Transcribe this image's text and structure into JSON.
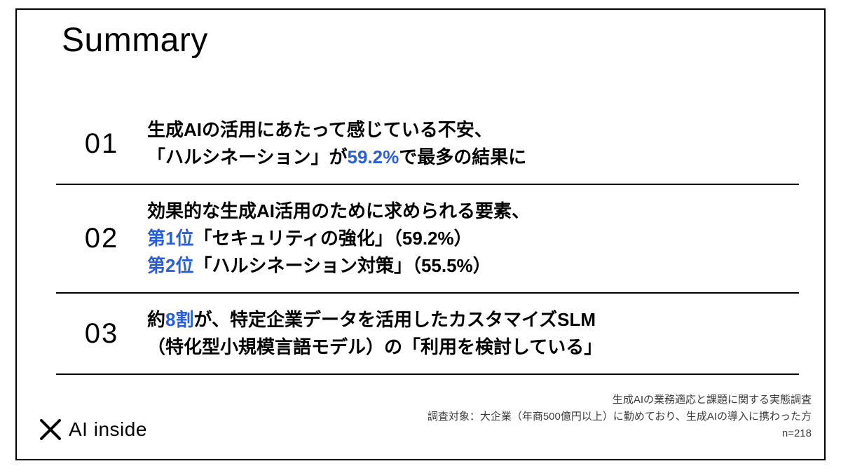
{
  "colors": {
    "background": "#ffffff",
    "text": "#000000",
    "highlight": "#2a5fd8",
    "rule": "#000000",
    "note_text": "#3a3a3a"
  },
  "typography": {
    "title_fontsize": 48,
    "number_fontsize": 40,
    "body_fontsize": 26,
    "note_fontsize": 15,
    "logo_fontsize": 28,
    "body_weight": 700
  },
  "title": "Summary",
  "items": [
    {
      "number": "01",
      "segments": [
        {
          "t": "生成AIの活用にあたって感じている不安、",
          "hl": false,
          "br": true
        },
        {
          "t": "「ハルシネーション」が",
          "hl": false
        },
        {
          "t": "59.2%",
          "hl": true
        },
        {
          "t": "で最多の結果に",
          "hl": false
        }
      ]
    },
    {
      "number": "02",
      "segments": [
        {
          "t": "効果的な生成AI活用のために求められる要素、",
          "hl": false,
          "br": true
        },
        {
          "t": "第1位",
          "hl": true
        },
        {
          "t": "「セキュリティの強化」（59.2%）",
          "hl": false,
          "br": true
        },
        {
          "t": "第2位",
          "hl": true
        },
        {
          "t": "「ハルシネーション対策」（55.5%）",
          "hl": false
        }
      ]
    },
    {
      "number": "03",
      "segments": [
        {
          "t": "約",
          "hl": false
        },
        {
          "t": "8割",
          "hl": true
        },
        {
          "t": "が、特定企業データを活用したカスタマイズSLM",
          "hl": false,
          "br": true
        },
        {
          "t": "（特化型小規模言語モデル）の「利用を検討している」",
          "hl": false
        }
      ]
    }
  ],
  "logo": {
    "text": "AI inside"
  },
  "notes": {
    "line1": "生成AIの業務適応と課題に関する実態調査",
    "line2": "調査対象：大企業（年商500億円以上）に勤めており、生成AIの導入に携わった方",
    "line3": "n=218"
  }
}
